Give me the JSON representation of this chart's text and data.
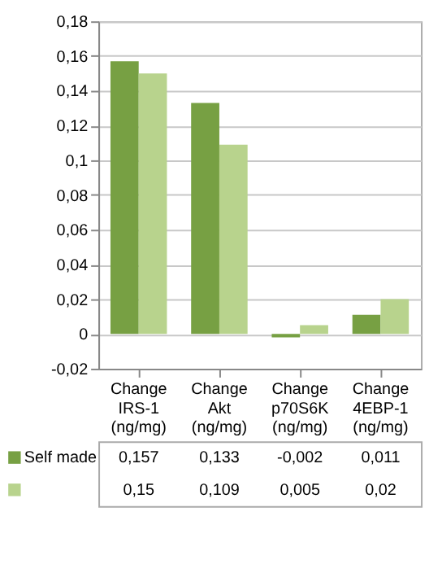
{
  "chart_data": {
    "type": "bar",
    "categories": [
      "Change IRS-1 (ng/mg)",
      "Change Akt (ng/mg)",
      "Change p70S6K (ng/mg)",
      "Change 4EBP-1 (ng/mg)"
    ],
    "series": [
      {
        "name": "Self made",
        "color": "#77a043",
        "values": [
          0.157,
          0.133,
          -0.002,
          0.011
        ],
        "value_labels": [
          "0,157",
          "0,133",
          "-0,002",
          "0,011"
        ]
      },
      {
        "color": "#b8d38d",
        "values": [
          0.15,
          0.109,
          0.005,
          0.02
        ],
        "value_labels": [
          "0,15",
          "0,109",
          "0,005",
          "0,02"
        ]
      }
    ],
    "ylim": [
      -0.02,
      0.18
    ],
    "yticks": [
      {
        "value": -0.02,
        "label": "-0,02"
      },
      {
        "value": 0,
        "label": "0"
      },
      {
        "value": 0.02,
        "label": "0,02"
      },
      {
        "value": 0.04,
        "label": "0,04"
      },
      {
        "value": 0.06,
        "label": "0,06"
      },
      {
        "value": 0.08,
        "label": "0,08"
      },
      {
        "value": 0.1,
        "label": "0,1"
      },
      {
        "value": 0.12,
        "label": "0,12"
      },
      {
        "value": 0.14,
        "label": "0,14"
      },
      {
        "value": 0.16,
        "label": "0,16"
      },
      {
        "value": 0.18,
        "label": "0,18"
      }
    ],
    "grid": "y",
    "legend": "bottom"
  }
}
